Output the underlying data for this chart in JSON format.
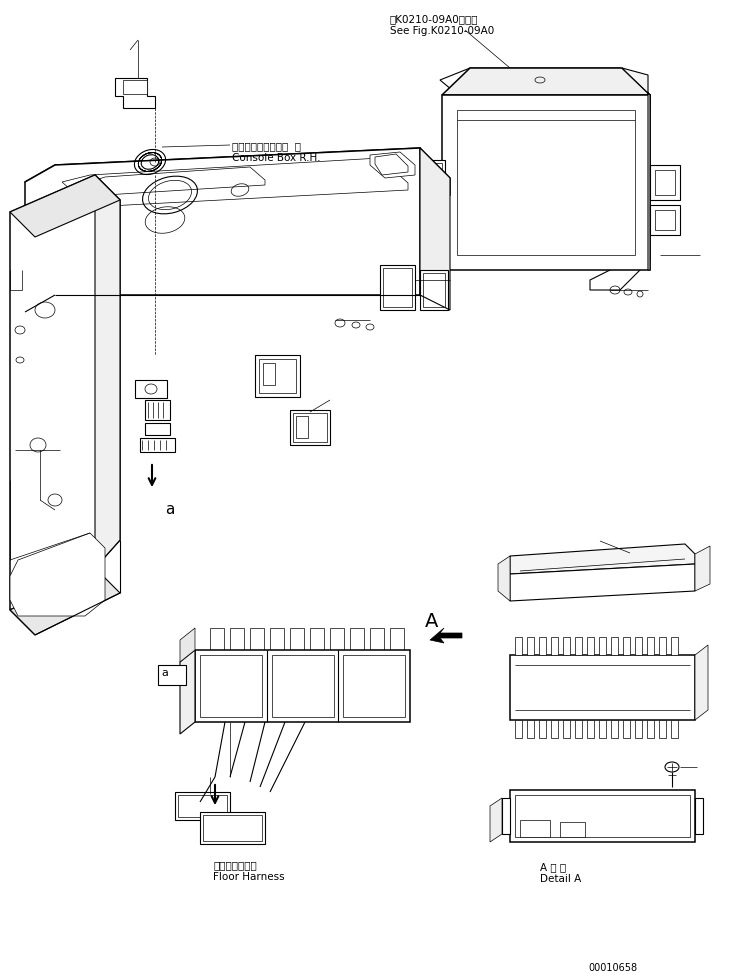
{
  "bg_color": "#ffffff",
  "line_color": "#000000",
  "fig_width": 7.34,
  "fig_height": 9.73,
  "dpi": 100,
  "part_number": "00010658",
  "top_ref_line1": "第K0210-09A0図参照",
  "top_ref_line2": "See Fig.K0210-09A0",
  "label_console_jp": "コンソールボックス  右",
  "label_console_en": "Console Box R.H.",
  "label_floor_jp": "フロアハーネス",
  "label_floor_en": "Floor Harness",
  "label_detail_jp": "A 詳 細",
  "label_detail_en": "Detail A",
  "arrow_label": "A"
}
